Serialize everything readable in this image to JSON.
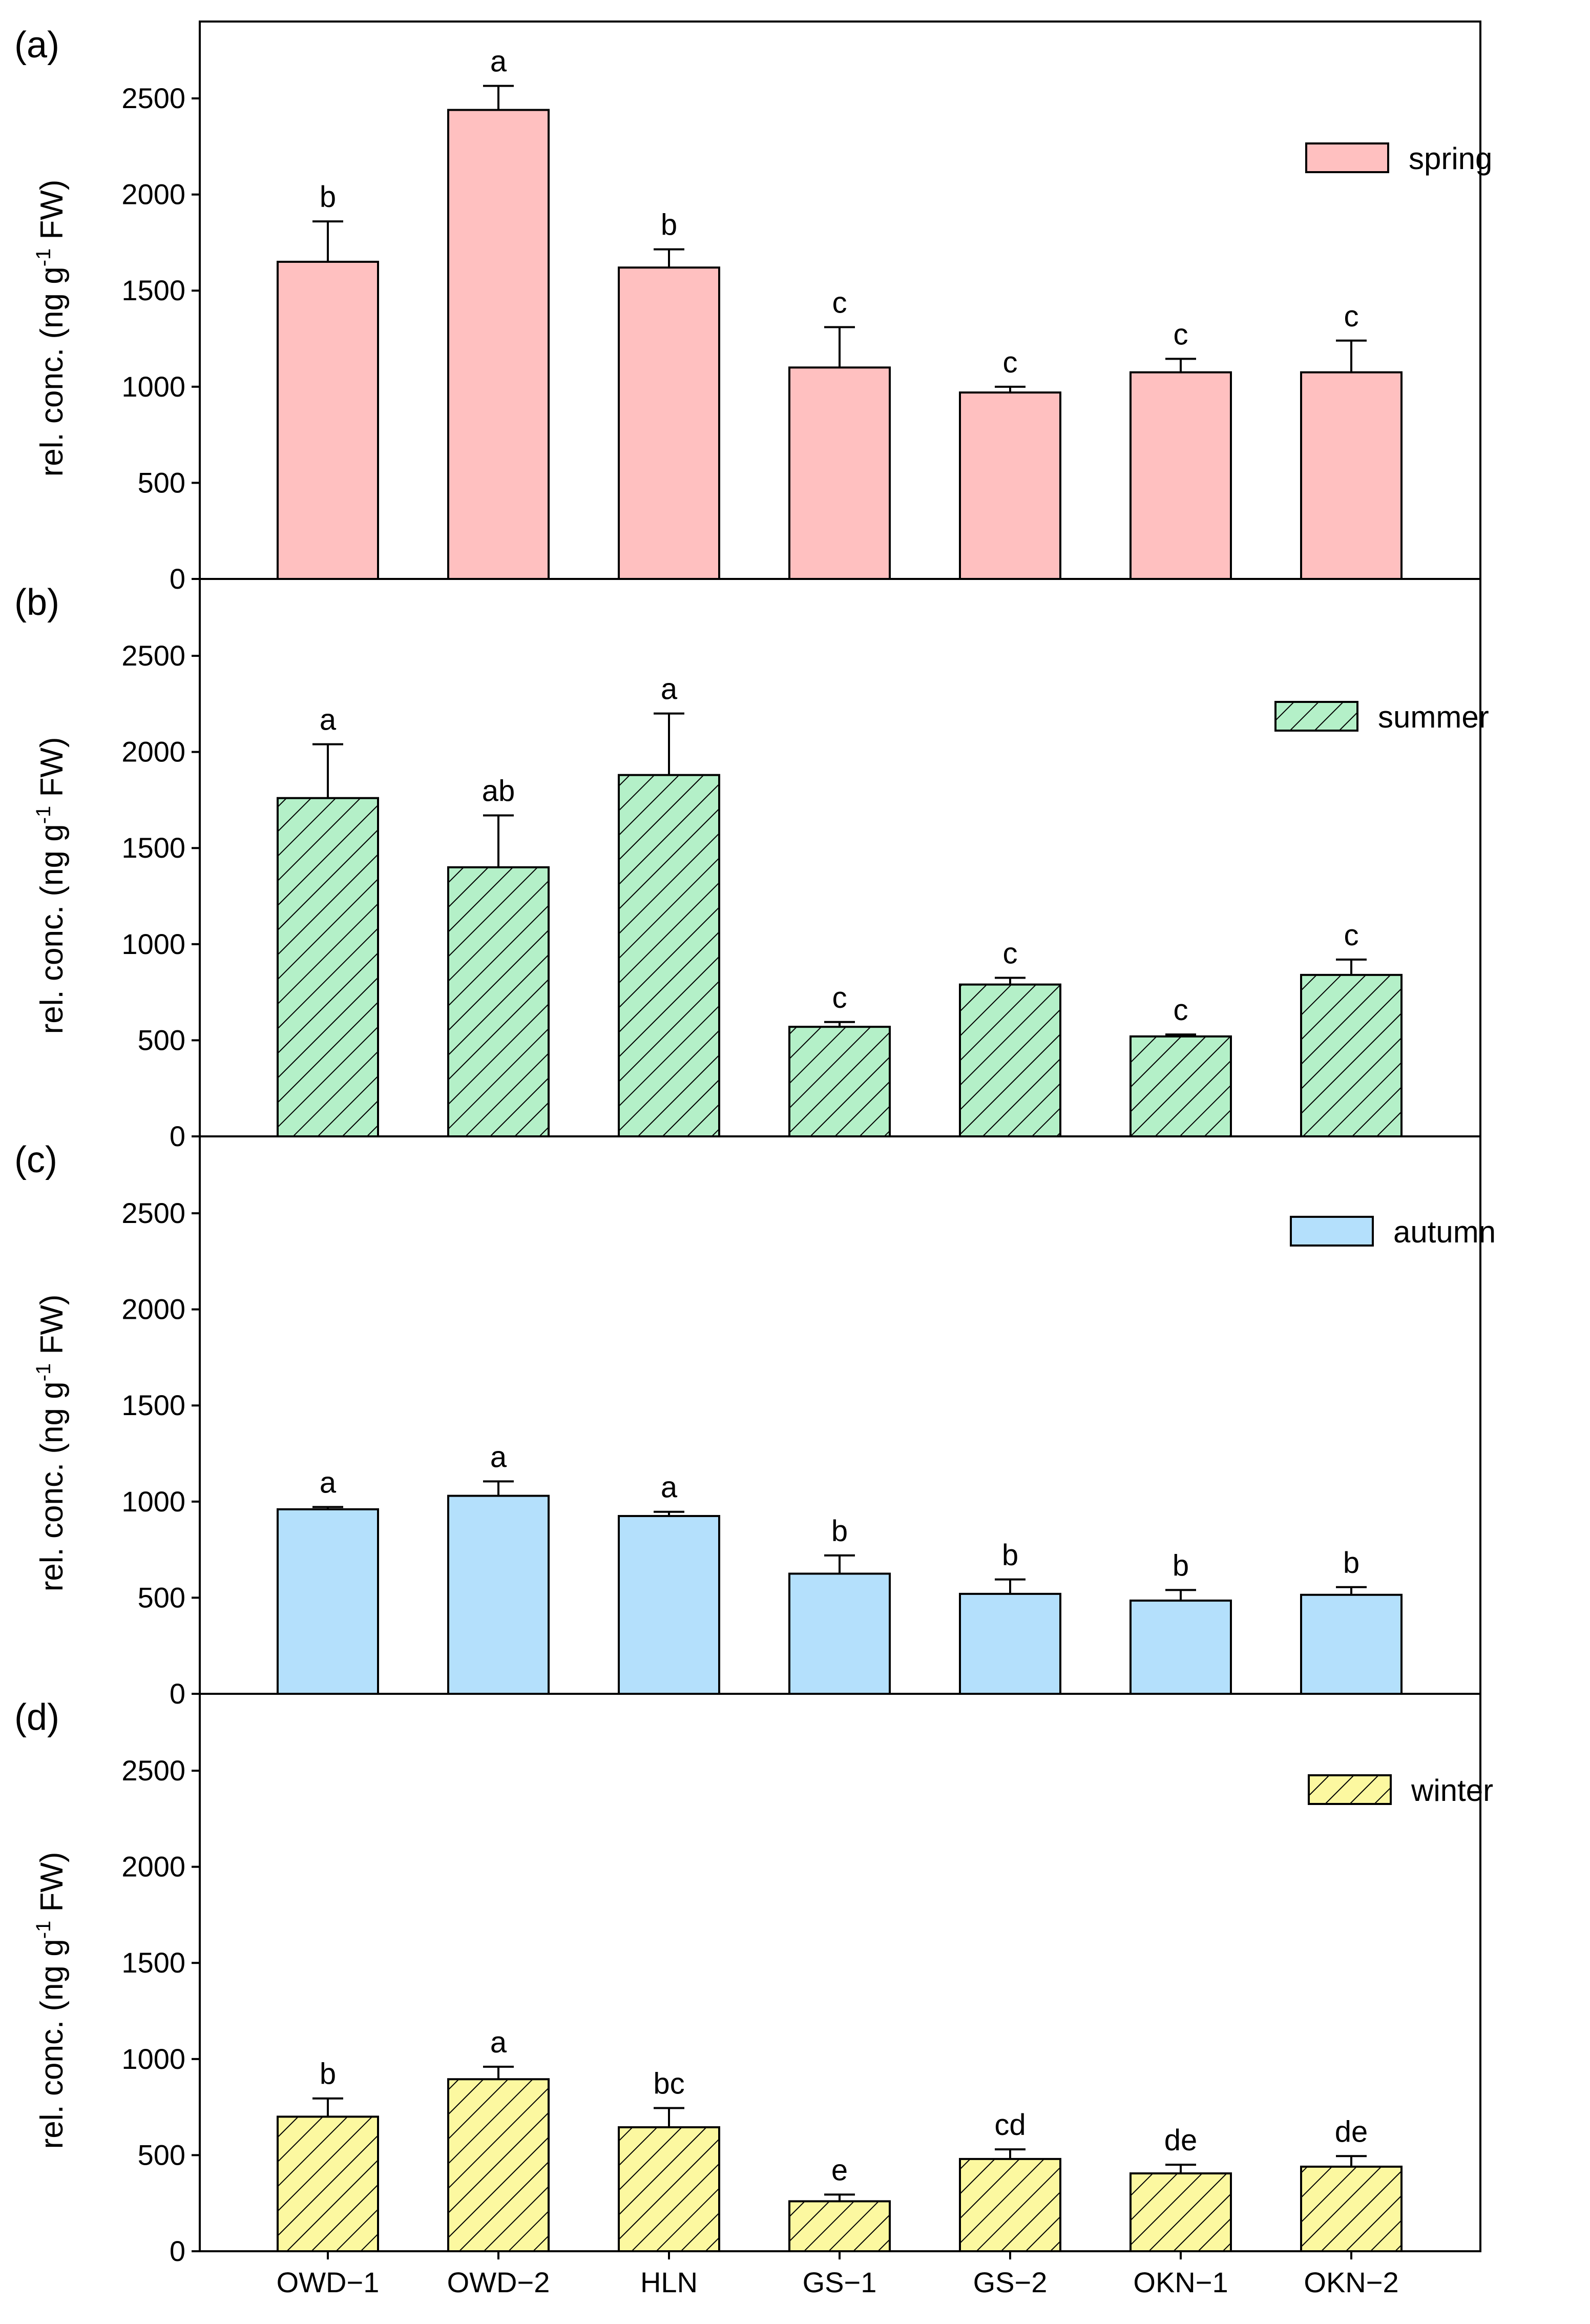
{
  "chart_data": [
    {
      "type": "bar",
      "panel_label": "(a)",
      "legend": "spring",
      "fill": "#ffc0c0",
      "pattern": "solid",
      "ylabel": "rel. conc. (ng g",
      "ylabel_sup": "-1",
      "ylabel_end": " FW)",
      "ylim": [
        0,
        2900
      ],
      "yticks": [
        "0",
        "500",
        "1000",
        "1500",
        "2000",
        "2500"
      ],
      "categories": [
        "OWD−1",
        "OWD−2",
        "HLN",
        "GS−1",
        "GS−2",
        "OKN−1",
        "OKN−2"
      ],
      "values": [
        1650,
        2440,
        1620,
        1100,
        970,
        1075,
        1075
      ],
      "errors": [
        210,
        125,
        95,
        210,
        30,
        70,
        165
      ],
      "letters": [
        "b",
        "a",
        "b",
        "c",
        "c",
        "c",
        "c"
      ]
    },
    {
      "type": "bar",
      "panel_label": "(b)",
      "legend": "summer",
      "fill": "#b4f0c8",
      "pattern": "hatch",
      "ylabel": "rel. conc. (ng g",
      "ylabel_sup": "-1",
      "ylabel_end": " FW)",
      "ylim": [
        0,
        2900
      ],
      "yticks": [
        "0",
        "500",
        "1000",
        "1500",
        "2000",
        "2500"
      ],
      "categories": [
        "OWD−1",
        "OWD−2",
        "HLN",
        "GS−1",
        "GS−2",
        "OKN−1",
        "OKN−2"
      ],
      "values": [
        1760,
        1400,
        1880,
        570,
        790,
        520,
        840
      ],
      "errors": [
        280,
        270,
        320,
        25,
        35,
        10,
        80
      ],
      "letters": [
        "a",
        "ab",
        "a",
        "c",
        "c",
        "c",
        "c"
      ]
    },
    {
      "type": "bar",
      "panel_label": "(c)",
      "legend": "autumn",
      "fill": "#b4e0fc",
      "pattern": "solid",
      "ylabel": "rel. conc. (ng g",
      "ylabel_sup": "-1",
      "ylabel_end": " FW)",
      "ylim": [
        0,
        2900
      ],
      "yticks": [
        "0",
        "500",
        "1000",
        "1500",
        "2000",
        "2500"
      ],
      "categories": [
        "OWD−1",
        "OWD−2",
        "HLN",
        "GS−1",
        "GS−2",
        "OKN−1",
        "OKN−2"
      ],
      "values": [
        960,
        1030,
        925,
        625,
        520,
        485,
        515
      ],
      "errors": [
        12,
        75,
        22,
        95,
        75,
        55,
        40
      ],
      "letters": [
        "a",
        "a",
        "a",
        "b",
        "b",
        "b",
        "b"
      ]
    },
    {
      "type": "bar",
      "panel_label": "(d)",
      "legend": "winter",
      "fill": "#fcf8a0",
      "pattern": "hatch",
      "ylabel": "rel. conc. (ng g",
      "ylabel_sup": "-1",
      "ylabel_end": " FW)",
      "ylim": [
        0,
        2900
      ],
      "yticks": [
        "0",
        "500",
        "1000",
        "1500",
        "2000",
        "2500"
      ],
      "categories": [
        "OWD−1",
        "OWD−2",
        "HLN",
        "GS−1",
        "GS−2",
        "OKN−1",
        "OKN−2"
      ],
      "values": [
        700,
        895,
        645,
        260,
        480,
        405,
        440
      ],
      "errors": [
        95,
        65,
        100,
        35,
        50,
        45,
        55
      ],
      "letters": [
        "b",
        "a",
        "bc",
        "e",
        "cd",
        "de",
        "de"
      ]
    }
  ]
}
